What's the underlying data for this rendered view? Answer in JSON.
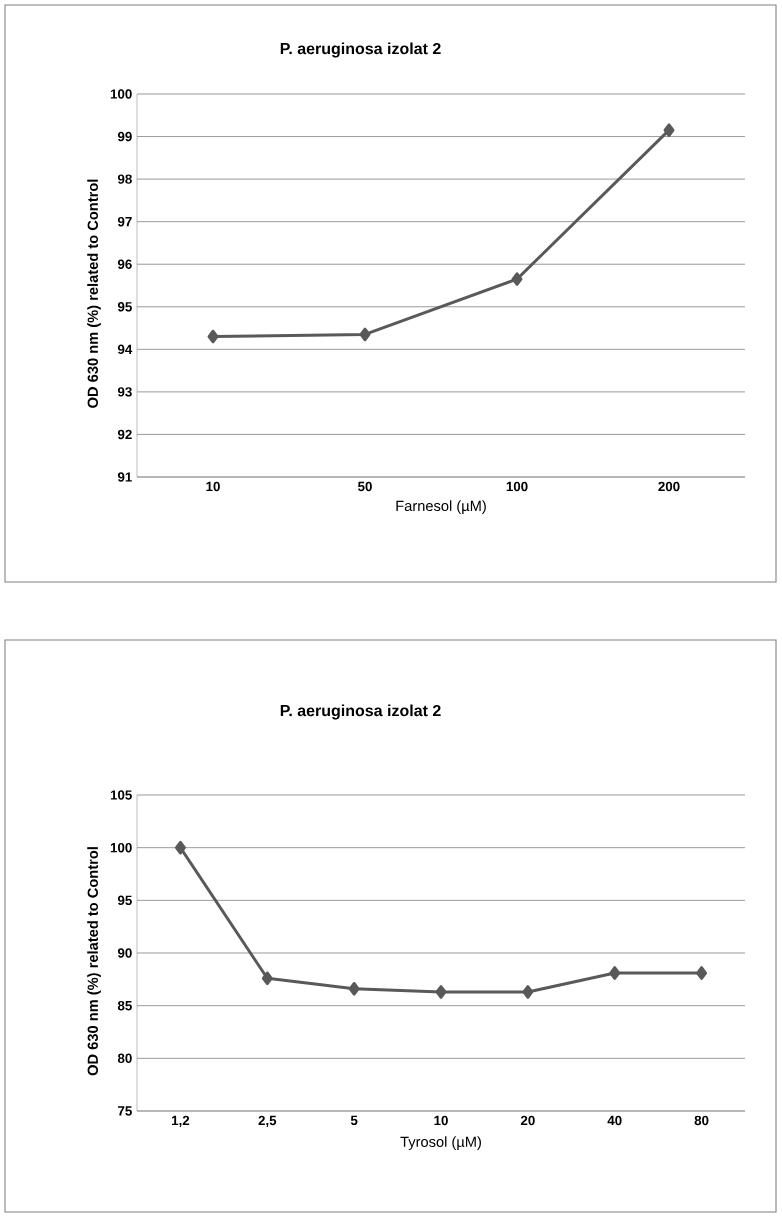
{
  "chart_data": [
    {
      "type": "line",
      "title": "P. aeruginosa izolat 2",
      "xlabel": "Farnesol  (µM)",
      "ylabel": "OD 630 nm (%) related to Control",
      "categories": [
        "10",
        "50",
        "100",
        "200"
      ],
      "values": [
        94.3,
        94.35,
        95.65,
        99.15
      ],
      "color": "#595959",
      "ylim": [
        91,
        100
      ],
      "yticks": [
        91,
        92,
        93,
        94,
        95,
        96,
        97,
        98,
        99,
        100
      ],
      "grid": "y",
      "marker": "diamond",
      "line_style": "solid"
    },
    {
      "type": "line",
      "title": "P. aeruginosa izolat 2",
      "xlabel": "Tyrosol  (µM)",
      "ylabel": "OD 630 nm (%) related to Control",
      "categories": [
        "1,2",
        "2,5",
        "5",
        "10",
        "20",
        "40",
        "80"
      ],
      "values": [
        100,
        87.6,
        86.6,
        86.3,
        86.3,
        88.1,
        88.1
      ],
      "color": "#595959",
      "ylim": [
        75,
        105
      ],
      "yticks": [
        75,
        80,
        85,
        90,
        95,
        100,
        105
      ],
      "grid": "y",
      "marker": "diamond",
      "line_style": "solid"
    }
  ]
}
